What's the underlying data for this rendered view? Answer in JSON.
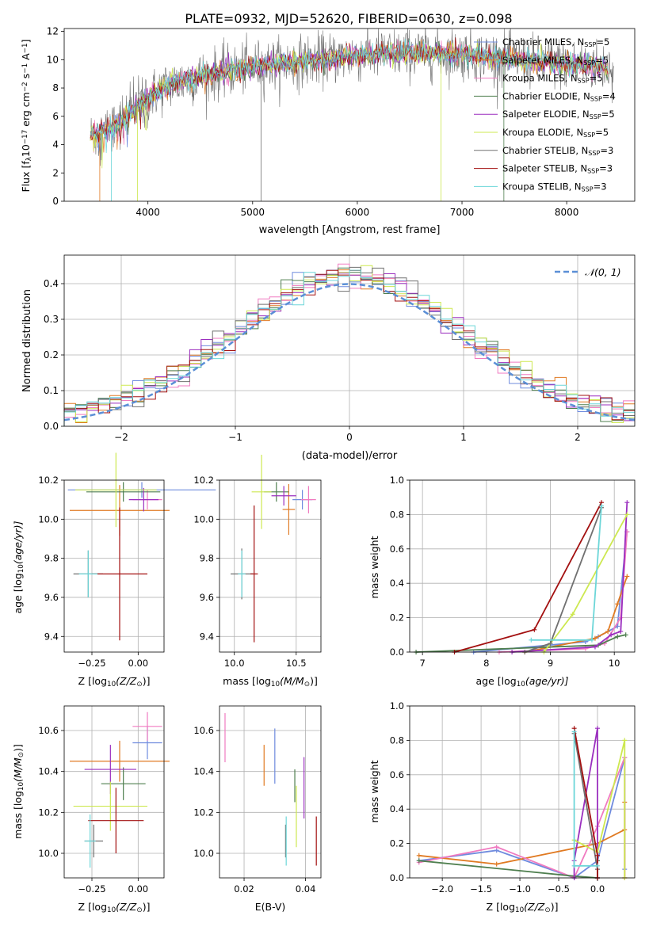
{
  "title": "PLATE=0932, MJD=52620, FIBERID=0630, z=0.098",
  "colors": {
    "series": [
      "#6f8bde",
      "#e07a22",
      "#f07ac0",
      "#4f7f4f",
      "#9b2fbf",
      "#cde850",
      "#707070",
      "#a31010",
      "#6cd6d8"
    ],
    "normal": "#5b8fd6",
    "grid": "#b0b0b0"
  },
  "chart_data": [
    {
      "id": "spectrum",
      "type": "line",
      "xlabel": "wavelength [Angstrom, rest frame]",
      "ylabel": "Flux [f",
      "ylabel_parts": [
        "Flux [f",
        "λ",
        "10",
        "−17",
        " erg cm",
        "−2",
        " s",
        "−1",
        " A",
        "−1",
        "]"
      ],
      "xlim": [
        3200,
        8650
      ],
      "ylim": [
        0,
        12.2
      ],
      "xticks": [
        4000,
        5000,
        6000,
        7000,
        8000
      ],
      "yticks": [
        0,
        2,
        4,
        6,
        8,
        10,
        12
      ],
      "grid": false,
      "legend_position": "top-right",
      "legend": [
        {
          "label": "Chabrier MILES, N",
          "sub": "SSP",
          "suffix": "=5"
        },
        {
          "label": "Salpeter MILES, N",
          "sub": "SSP",
          "suffix": "=5"
        },
        {
          "label": "Kroupa MILES, N",
          "sub": "SSP",
          "suffix": "=5"
        },
        {
          "label": "Chabrier ELODIE, N",
          "sub": "SSP",
          "suffix": "=4"
        },
        {
          "label": "Salpeter ELODIE, N",
          "sub": "SSP",
          "suffix": "=5"
        },
        {
          "label": "Kroupa ELODIE, N",
          "sub": "SSP",
          "suffix": "=5"
        },
        {
          "label": "Chabrier STELIB, N",
          "sub": "SSP",
          "suffix": "=3"
        },
        {
          "label": "Salpeter STELIB, N",
          "sub": "SSP",
          "suffix": "=3"
        },
        {
          "label": "Kroupa STELIB, N",
          "sub": "SSP",
          "suffix": "=3"
        }
      ],
      "continuum": {
        "x": [
          3450,
          3600,
          3800,
          4000,
          4200,
          4500,
          5000,
          5500,
          6000,
          6500,
          7000,
          7500,
          8000,
          8400
        ],
        "y": [
          4.6,
          5.0,
          6.0,
          7.4,
          8.2,
          8.8,
          9.5,
          9.9,
          10.3,
          10.5,
          10.4,
          10.0,
          9.7,
          9.5
        ]
      }
    },
    {
      "id": "residuals",
      "type": "histogram",
      "xlabel": "(data-model)/error",
      "ylabel": "Normed distribution",
      "xlim": [
        -2.5,
        2.5
      ],
      "ylim": [
        0,
        0.48
      ],
      "xticks": [
        -2,
        -1,
        0,
        1,
        2
      ],
      "xtick_labels": [
        "−2",
        "−1",
        "0",
        "1",
        "2"
      ],
      "yticks": [
        0,
        0.1,
        0.2,
        0.3,
        0.4
      ],
      "ytick_labels": [
        "0.0",
        "0.1",
        "0.2",
        "0.3",
        "0.4"
      ],
      "grid": true,
      "legend_position": "top-right",
      "legend": "𝒩(0, 1)",
      "bin_width": 0.1
    },
    {
      "id": "age-vs-Z",
      "type": "scatter",
      "xlabel": "Z [log",
      "xlabel_parts": [
        "Z [log",
        "10",
        "(Z/Z",
        "⊙",
        ")]"
      ],
      "ylabel_parts": [
        "age  [log",
        "10",
        "(age/yr)]"
      ],
      "xlim": [
        -0.4,
        0.14
      ],
      "ylim": [
        9.32,
        10.2
      ],
      "xticks": [
        -0.25,
        0.0
      ],
      "xtick_labels": [
        "−0.25",
        "0.00"
      ],
      "yticks": [
        9.4,
        9.6,
        9.8,
        10.0,
        10.2
      ],
      "ytick_labels": [
        "9.4",
        "9.6",
        "9.8",
        "10.0",
        "10.2"
      ],
      "grid": true,
      "points": [
        {
          "x": 0.02,
          "y": 10.15,
          "xerr": 0.4,
          "yerr": 0.04,
          "c": 0
        },
        {
          "x": -0.1,
          "y": 10.045,
          "xerr": 0.27,
          "yerr": 0.13,
          "c": 1
        },
        {
          "x": 0.05,
          "y": 10.1,
          "xerr": 0.08,
          "yerr": 0.05,
          "c": 2
        },
        {
          "x": -0.08,
          "y": 10.14,
          "xerr": 0.2,
          "yerr": 0.05,
          "c": 3
        },
        {
          "x": 0.03,
          "y": 10.1,
          "xerr": 0.08,
          "yerr": 0.06,
          "c": 4
        },
        {
          "x": -0.12,
          "y": 10.15,
          "xerr": 0.22,
          "yerr": 0.19,
          "c": 5
        },
        {
          "x": -0.27,
          "y": 9.72,
          "xerr": 0.08,
          "yerr": 0.12,
          "c": 6
        },
        {
          "x": -0.1,
          "y": 9.72,
          "xerr": 0.15,
          "yerr": 0.34,
          "c": 7
        },
        {
          "x": -0.27,
          "y": 9.72,
          "xerr": 0.05,
          "yerr": 0.12,
          "c": 8
        }
      ]
    },
    {
      "id": "age-vs-mass",
      "type": "scatter",
      "xlabel_parts": [
        "mass [log",
        "10",
        "(M/M",
        "⊙",
        ")]"
      ],
      "xlim": [
        9.88,
        10.7
      ],
      "ylim": [
        9.32,
        10.2
      ],
      "xticks": [
        10.0,
        10.5
      ],
      "xtick_labels": [
        "10.0",
        "10.5"
      ],
      "yticks": [
        9.4,
        9.6,
        9.8,
        10.0,
        10.2
      ],
      "ytick_labels": [
        "9.4",
        "9.6",
        "9.8",
        "10.0",
        "10.2"
      ],
      "grid": true,
      "points": [
        {
          "x": 10.55,
          "y": 10.1,
          "xerr": 0.08,
          "yerr": 0.05,
          "c": 0
        },
        {
          "x": 10.44,
          "y": 10.05,
          "xerr": 0.05,
          "yerr": 0.13,
          "c": 1
        },
        {
          "x": 10.6,
          "y": 10.1,
          "xerr": 0.06,
          "yerr": 0.07,
          "c": 2
        },
        {
          "x": 10.34,
          "y": 10.14,
          "xerr": 0.1,
          "yerr": 0.05,
          "c": 3
        },
        {
          "x": 10.4,
          "y": 10.12,
          "xerr": 0.1,
          "yerr": 0.05,
          "c": 4
        },
        {
          "x": 10.22,
          "y": 10.14,
          "xerr": 0.08,
          "yerr": 0.19,
          "c": 5
        },
        {
          "x": 10.06,
          "y": 9.72,
          "xerr": 0.09,
          "yerr": 0.13,
          "c": 6
        },
        {
          "x": 10.16,
          "y": 9.72,
          "xerr": 0.03,
          "yerr": 0.35,
          "c": 7
        },
        {
          "x": 10.06,
          "y": 9.72,
          "xerr": 0.03,
          "yerr": 0.12,
          "c": 8
        }
      ]
    },
    {
      "id": "weight-vs-age",
      "type": "line",
      "xlabel_parts": [
        "age  [log",
        "10",
        "(age/yr)]"
      ],
      "ylabel": "mass weight",
      "xlim": [
        6.8,
        10.32
      ],
      "ylim": [
        0,
        1.0
      ],
      "xticks": [
        7,
        8,
        9,
        10
      ],
      "xtick_labels": [
        "7",
        "8",
        "9",
        "10"
      ],
      "yticks": [
        0,
        0.2,
        0.4,
        0.6,
        0.8,
        1.0
      ],
      "ytick_labels": [
        "0.0",
        "0.2",
        "0.4",
        "0.6",
        "0.8",
        "1.0"
      ],
      "grid": true,
      "series": [
        {
          "c": 0,
          "x": [
            7.8,
            9.55,
            9.75,
            10.05,
            10.2
          ],
          "y": [
            0.0,
            0.06,
            0.09,
            0.15,
            0.7
          ]
        },
        {
          "c": 1,
          "x": [
            8.6,
            9.7,
            9.9,
            10.05,
            10.2
          ],
          "y": [
            0.0,
            0.08,
            0.12,
            0.28,
            0.44
          ]
        },
        {
          "c": 2,
          "x": [
            8.2,
            9.55,
            9.85,
            10.1,
            10.2
          ],
          "y": [
            0.0,
            0.02,
            0.05,
            0.2,
            0.7
          ]
        },
        {
          "c": 3,
          "x": [
            6.9,
            9.75,
            10.05,
            10.18
          ],
          "y": [
            0.0,
            0.04,
            0.09,
            0.1
          ]
        },
        {
          "c": 4,
          "x": [
            8.4,
            9.7,
            9.95,
            10.1,
            10.2
          ],
          "y": [
            0.0,
            0.03,
            0.1,
            0.12,
            0.87
          ]
        },
        {
          "c": 5,
          "x": [
            8.9,
            9.35,
            10.2
          ],
          "y": [
            0.0,
            0.22,
            0.8
          ]
        },
        {
          "c": 6,
          "x": [
            8.6,
            9.0,
            9.8
          ],
          "y": [
            0.0,
            0.05,
            0.84
          ]
        },
        {
          "c": 7,
          "x": [
            7.5,
            8.75,
            9.8
          ],
          "y": [
            0.0,
            0.13,
            0.87
          ]
        },
        {
          "c": 8,
          "x": [
            8.7,
            9.65,
            9.8
          ],
          "y": [
            0.07,
            0.07,
            0.85
          ]
        }
      ]
    },
    {
      "id": "mass-vs-Z",
      "type": "scatter",
      "xlabel_parts": [
        "Z [log",
        "10",
        "(Z/Z",
        "⊙",
        ")]"
      ],
      "ylabel_parts": [
        "mass [log",
        "10",
        "(M/M",
        "⊙",
        ")]"
      ],
      "xlim": [
        -0.4,
        0.14
      ],
      "ylim": [
        9.88,
        10.72
      ],
      "xticks": [
        -0.25,
        0.0
      ],
      "xtick_labels": [
        "−0.25",
        "0.00"
      ],
      "yticks": [
        10.0,
        10.2,
        10.4,
        10.6
      ],
      "ytick_labels": [
        "10.0",
        "10.2",
        "10.4",
        "10.6"
      ],
      "grid": true,
      "points": [
        {
          "x": 0.05,
          "y": 10.54,
          "xerr": 0.08,
          "yerr": 0.08,
          "c": 0
        },
        {
          "x": -0.1,
          "y": 10.45,
          "xerr": 0.27,
          "yerr": 0.1,
          "c": 1
        },
        {
          "x": 0.05,
          "y": 10.62,
          "xerr": 0.08,
          "yerr": 0.07,
          "c": 2
        },
        {
          "x": -0.08,
          "y": 10.34,
          "xerr": 0.12,
          "yerr": 0.08,
          "c": 3
        },
        {
          "x": -0.15,
          "y": 10.41,
          "xerr": 0.14,
          "yerr": 0.12,
          "c": 4
        },
        {
          "x": -0.15,
          "y": 10.23,
          "xerr": 0.2,
          "yerr": 0.12,
          "c": 5
        },
        {
          "x": -0.24,
          "y": 10.06,
          "xerr": 0.05,
          "yerr": 0.08,
          "c": 6
        },
        {
          "x": -0.12,
          "y": 10.16,
          "xerr": 0.15,
          "yerr": 0.16,
          "c": 7
        },
        {
          "x": -0.26,
          "y": 10.06,
          "xerr": 0.03,
          "yerr": 0.13,
          "c": 8
        }
      ]
    },
    {
      "id": "mass-vs-ebv",
      "type": "scatter",
      "xlabel": "E(B-V)",
      "xlim": [
        0.012,
        0.045
      ],
      "ylim": [
        9.88,
        10.72
      ],
      "xticks": [
        0.02,
        0.04
      ],
      "xtick_labels": [
        "0.02",
        "0.04"
      ],
      "yticks": [
        10.0,
        10.2,
        10.4,
        10.6
      ],
      "ytick_labels": [
        "10.0",
        "10.2",
        "10.4",
        "10.6"
      ],
      "grid": true,
      "points": [
        {
          "x": 0.03,
          "y": 10.475,
          "yerr": 0.135,
          "c": 0
        },
        {
          "x": 0.0265,
          "y": 10.43,
          "yerr": 0.1,
          "c": 1
        },
        {
          "x": 0.0138,
          "y": 10.565,
          "yerr": 0.12,
          "c": 2
        },
        {
          "x": 0.0365,
          "y": 10.33,
          "yerr": 0.08,
          "c": 3
        },
        {
          "x": 0.0395,
          "y": 10.32,
          "yerr": 0.15,
          "c": 4
        },
        {
          "x": 0.037,
          "y": 10.18,
          "yerr": 0.15,
          "c": 5
        },
        {
          "x": 0.0335,
          "y": 10.06,
          "yerr": 0.08,
          "c": 6
        },
        {
          "x": 0.0435,
          "y": 10.06,
          "yerr": 0.12,
          "c": 7
        },
        {
          "x": 0.0337,
          "y": 10.06,
          "yerr": 0.12,
          "c": 8
        }
      ]
    },
    {
      "id": "weight-vs-Z",
      "type": "line",
      "xlabel_parts": [
        "Z [log",
        "10",
        "(Z/Z",
        "⊙",
        ")]"
      ],
      "ylabel": "mass weight",
      "xlim": [
        -2.42,
        0.48
      ],
      "ylim": [
        0,
        1.0
      ],
      "xticks": [
        -2.0,
        -1.5,
        -1.0,
        -0.5,
        0.0
      ],
      "xtick_labels": [
        "−2.0",
        "−1.5",
        "−1.0",
        "−0.5",
        "0.0"
      ],
      "yticks": [
        0,
        0.2,
        0.4,
        0.6,
        0.8,
        1.0
      ],
      "ytick_labels": [
        "0.0",
        "0.2",
        "0.4",
        "0.6",
        "0.8",
        "1.0"
      ],
      "grid": true,
      "series": [
        {
          "c": 0,
          "x": [
            -2.3,
            -1.3,
            -0.3,
            0.0,
            0.35,
            0.35
          ],
          "y": [
            0.1,
            0.16,
            0.0,
            0.1,
            0.7,
            0.05
          ]
        },
        {
          "c": 1,
          "x": [
            -2.3,
            -1.3,
            0.0,
            0.35,
            0.35,
            0.35
          ],
          "y": [
            0.13,
            0.08,
            0.2,
            0.28,
            0.44,
            0.0
          ]
        },
        {
          "c": 2,
          "x": [
            -2.3,
            -1.3,
            -0.3,
            0.0,
            0.35,
            0.35
          ],
          "y": [
            0.09,
            0.18,
            0.0,
            0.3,
            0.7,
            0.0
          ]
        },
        {
          "c": 3,
          "x": [
            -2.3,
            -0.3,
            0.0,
            0.0
          ],
          "y": [
            0.1,
            0.01,
            0.0,
            0.1
          ]
        },
        {
          "c": 4,
          "x": [
            -0.3,
            -0.3,
            0.0,
            0.0
          ],
          "y": [
            0.0,
            0.1,
            0.87,
            0.0
          ]
        },
        {
          "c": 5,
          "x": [
            -0.3,
            0.0,
            0.35,
            0.35
          ],
          "y": [
            0.22,
            0.15,
            0.8,
            0.0
          ]
        },
        {
          "c": 6,
          "x": [
            -0.3,
            0.0,
            0.0
          ],
          "y": [
            0.84,
            0.05,
            0.0
          ]
        },
        {
          "c": 7,
          "x": [
            -0.3,
            0.0,
            0.0
          ],
          "y": [
            0.87,
            0.13,
            0.0
          ]
        },
        {
          "c": 8,
          "x": [
            -0.3,
            -0.3,
            0.0
          ],
          "y": [
            0.85,
            0.07,
            0.07
          ]
        }
      ]
    }
  ]
}
